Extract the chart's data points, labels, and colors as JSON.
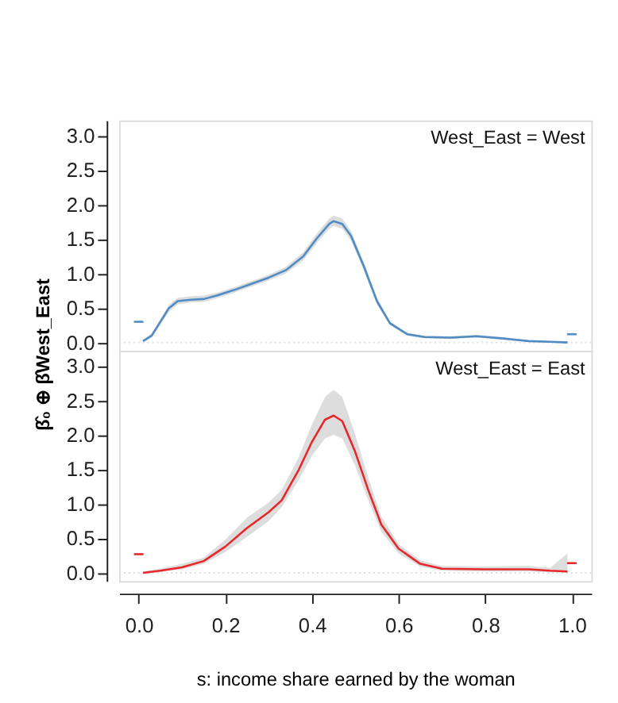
{
  "chart_data": [
    {
      "type": "line",
      "ylabel": "β̂₀ ⊕ β̂West_East",
      "annotations": [
        "West_East = West"
      ],
      "xlim": [
        -0.045,
        1.045
      ],
      "ylim": [
        -0.12,
        3.22
      ],
      "yticks": [
        {
          "value": 0,
          "label": "0.0"
        },
        {
          "value": 0.5,
          "label": "0.5"
        },
        {
          "value": 1,
          "label": "1.0"
        },
        {
          "value": 1.5,
          "label": "1.5"
        },
        {
          "value": 2,
          "label": "2.0"
        },
        {
          "value": 2.5,
          "label": "2.5"
        },
        {
          "value": 3,
          "label": "3.0"
        }
      ],
      "tick_labels": "y",
      "legend": false,
      "grid": false,
      "ref_lines": [
        {
          "axis": "y",
          "value": 0,
          "color": "#dddddd",
          "line_style": "dotted"
        }
      ],
      "series": [
        {
          "color": "#4f8bc4",
          "x": [
            0.01,
            0.03,
            0.05,
            0.07,
            0.09,
            0.12,
            0.15,
            0.18,
            0.22,
            0.26,
            0.3,
            0.34,
            0.38,
            0.41,
            0.44,
            0.45,
            0.47,
            0.49,
            0.52,
            0.55,
            0.58,
            0.62,
            0.66,
            0.72,
            0.78,
            0.84,
            0.9,
            0.95,
            0.99
          ],
          "values": [
            0.02,
            0.1,
            0.3,
            0.5,
            0.6,
            0.62,
            0.63,
            0.68,
            0.76,
            0.85,
            0.94,
            1.05,
            1.25,
            1.5,
            1.72,
            1.76,
            1.72,
            1.55,
            1.1,
            0.6,
            0.28,
            0.12,
            0.08,
            0.07,
            0.09,
            0.06,
            0.02,
            0.01,
            0.0
          ],
          "lower": [
            0.0,
            0.07,
            0.26,
            0.45,
            0.55,
            0.58,
            0.59,
            0.64,
            0.72,
            0.81,
            0.9,
            1.0,
            1.19,
            1.43,
            1.65,
            1.69,
            1.65,
            1.48,
            1.04,
            0.55,
            0.25,
            0.1,
            0.06,
            0.05,
            0.07,
            0.04,
            0.01,
            0.0,
            0.0
          ],
          "upper": [
            0.04,
            0.13,
            0.34,
            0.55,
            0.65,
            0.67,
            0.68,
            0.72,
            0.8,
            0.89,
            0.98,
            1.1,
            1.31,
            1.57,
            1.8,
            1.84,
            1.8,
            1.62,
            1.16,
            0.65,
            0.31,
            0.14,
            0.1,
            0.09,
            0.11,
            0.08,
            0.03,
            0.02,
            0.01
          ]
        },
        {
          "color": "#4f8bc4",
          "x": [
            -0.011,
            0.011
          ],
          "values": [
            0.3,
            0.3
          ]
        },
        {
          "color": "#4f8bc4",
          "x": [
            0.989,
            1.011
          ],
          "values": [
            0.12,
            0.12
          ]
        }
      ]
    },
    {
      "type": "line",
      "xlabel": "s: income share earned by the woman",
      "annotations": [
        "West_East = East"
      ],
      "xlim": [
        -0.045,
        1.045
      ],
      "xticks": [
        {
          "value": 0,
          "label": "0.0"
        },
        {
          "value": 0.2,
          "label": "0.2"
        },
        {
          "value": 0.4,
          "label": "0.4"
        },
        {
          "value": 0.6,
          "label": "0.6"
        },
        {
          "value": 0.8,
          "label": "0.8"
        },
        {
          "value": 1,
          "label": "1.0"
        }
      ],
      "ylim": [
        -0.12,
        3.22
      ],
      "yticks": [
        {
          "value": 0,
          "label": "0.0"
        },
        {
          "value": 0.5,
          "label": "0.5"
        },
        {
          "value": 1,
          "label": "1.0"
        },
        {
          "value": 1.5,
          "label": "1.5"
        },
        {
          "value": 2,
          "label": "2.0"
        },
        {
          "value": 2.5,
          "label": "2.5"
        },
        {
          "value": 3,
          "label": "3.0"
        }
      ],
      "legend": false,
      "grid": false,
      "ref_lines": [
        {
          "axis": "y",
          "value": 0,
          "color": "#dddddd",
          "line_style": "dotted"
        }
      ],
      "series": [
        {
          "color": "#e8272a",
          "x": [
            0.01,
            0.05,
            0.1,
            0.15,
            0.2,
            0.25,
            0.3,
            0.33,
            0.37,
            0.4,
            0.43,
            0.45,
            0.47,
            0.5,
            0.53,
            0.56,
            0.6,
            0.65,
            0.7,
            0.8,
            0.9,
            0.95,
            0.99
          ],
          "values": [
            0.0,
            0.03,
            0.08,
            0.17,
            0.38,
            0.65,
            0.88,
            1.05,
            1.5,
            1.9,
            2.22,
            2.28,
            2.2,
            1.75,
            1.2,
            0.7,
            0.35,
            0.13,
            0.06,
            0.05,
            0.05,
            0.03,
            0.02
          ],
          "lower": [
            0.0,
            0.01,
            0.05,
            0.13,
            0.3,
            0.52,
            0.75,
            0.95,
            1.35,
            1.7,
            1.95,
            2.0,
            1.95,
            1.55,
            1.05,
            0.6,
            0.28,
            0.09,
            0.03,
            0.02,
            0.02,
            0.01,
            0.0
          ],
          "upper": [
            0.02,
            0.06,
            0.13,
            0.22,
            0.48,
            0.8,
            1.02,
            1.2,
            1.68,
            2.15,
            2.55,
            2.65,
            2.55,
            2.0,
            1.38,
            0.82,
            0.42,
            0.18,
            0.1,
            0.09,
            0.1,
            0.07,
            0.28
          ]
        },
        {
          "color": "#e8272a",
          "x": [
            -0.011,
            0.011
          ],
          "values": [
            0.27,
            0.27
          ]
        },
        {
          "color": "#e8272a",
          "x": [
            0.989,
            1.011
          ],
          "values": [
            0.14,
            0.14
          ]
        }
      ]
    }
  ]
}
